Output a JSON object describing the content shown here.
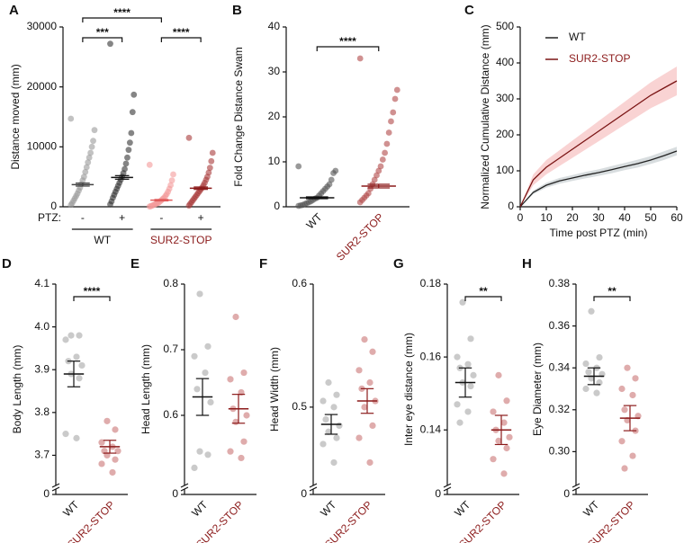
{
  "chart_data": [
    {
      "type": "dotplot",
      "panel": "A",
      "ylabel": "Distance moved (mm)",
      "ylim": [
        0,
        30000
      ],
      "yticks": [
        0,
        10000,
        20000,
        30000
      ],
      "categories": [
        "-",
        "+",
        "-",
        "+"
      ],
      "ptz_label": "PTZ:",
      "group_labels": [
        "WT",
        "SUR2-STOP"
      ],
      "groups": [
        {
          "color": "#9a9a9a",
          "mean_color": "#444444",
          "mean": 3700,
          "sem": 250,
          "values": [
            14700,
            12800,
            11000,
            10000,
            9000,
            8200,
            7400,
            6600,
            5800,
            5000,
            4400,
            3800,
            3200,
            2700,
            2200,
            1800,
            1400,
            1000,
            600,
            300
          ]
        },
        {
          "color": "#333333",
          "mean_color": "#111111",
          "mean": 4900,
          "sem": 300,
          "values": [
            27200,
            18700,
            15800,
            12300,
            10700,
            9500,
            8200,
            7200,
            6300,
            5600,
            5000,
            4500,
            4000,
            3500,
            3000,
            2500,
            2000,
            1500,
            900,
            400
          ]
        },
        {
          "color": "#f39a9a",
          "mean_color": "#e05a5a",
          "mean": 1100,
          "sem": 120,
          "values": [
            7000,
            5400,
            4400,
            3600,
            3000,
            2500,
            2100,
            1800,
            1500,
            1300,
            1100,
            900,
            700,
            600,
            500,
            400,
            300,
            200,
            100,
            50
          ]
        },
        {
          "color": "#a83a3a",
          "mean_color": "#8b1a1a",
          "mean": 3100,
          "sem": 200,
          "values": [
            11500,
            9000,
            7600,
            6500,
            5700,
            5000,
            4500,
            4000,
            3600,
            3200,
            2900,
            2600,
            2300,
            2000,
            1700,
            1400,
            1100,
            800,
            500,
            200
          ]
        }
      ],
      "significance": [
        {
          "pair": [
            0,
            2
          ],
          "label": "****"
        },
        {
          "pair": [
            0,
            1
          ],
          "label": "***"
        },
        {
          "pair": [
            2,
            3
          ],
          "label": "****"
        }
      ]
    },
    {
      "type": "dotplot",
      "panel": "B",
      "ylabel": "Fold Change Distance Swam",
      "ylim": [
        0,
        40
      ],
      "yticks": [
        0,
        10,
        20,
        30,
        40
      ],
      "categories": [
        "WT",
        "SUR2-STOP"
      ],
      "groups": [
        {
          "color": "#555555",
          "mean_color": "#111111",
          "mean": 2.0,
          "sem": 0.2,
          "values": [
            9,
            8,
            7.5,
            6,
            5,
            4.5,
            4,
            3.5,
            3,
            2.5,
            2,
            1.8,
            1.5,
            1.2,
            1,
            0.8,
            0.6,
            0.4,
            0.3,
            0.2
          ]
        },
        {
          "color": "#b04848",
          "mean_color": "#8b1a1a",
          "mean": 4.6,
          "sem": 0.4,
          "values": [
            33,
            26,
            24,
            21,
            19,
            16.5,
            14,
            12,
            10.5,
            9,
            8,
            7,
            6,
            5,
            4,
            3,
            2.5,
            2,
            1.5,
            1
          ]
        }
      ],
      "significance": [
        {
          "pair": [
            0,
            1
          ],
          "label": "****"
        }
      ]
    },
    {
      "type": "line",
      "panel": "C",
      "ylabel": "Normalized Cumulative Distance (mm)",
      "xlabel": "Time post PTZ (min)",
      "xlim": [
        0,
        60
      ],
      "xticks": [
        0,
        10,
        20,
        30,
        40,
        50,
        60
      ],
      "ylim": [
        0,
        500
      ],
      "yticks": [
        0,
        100,
        200,
        300,
        400,
        500
      ],
      "x": [
        0,
        5,
        10,
        15,
        20,
        25,
        30,
        35,
        40,
        45,
        50,
        55,
        60
      ],
      "series": [
        {
          "name": "WT",
          "color": "#222222",
          "band_color": "#c8cfd2",
          "values": [
            0,
            40,
            60,
            72,
            80,
            88,
            95,
            103,
            112,
            120,
            130,
            142,
            155
          ],
          "error": [
            0,
            5,
            7,
            8,
            8,
            9,
            9,
            10,
            10,
            11,
            11,
            12,
            12
          ]
        },
        {
          "name": "SUR2-STOP",
          "color": "#7a1414",
          "band_color": "#f6c0c0",
          "values": [
            0,
            75,
            110,
            135,
            160,
            185,
            210,
            235,
            260,
            285,
            310,
            330,
            350
          ],
          "error": [
            0,
            15,
            20,
            22,
            24,
            26,
            28,
            30,
            32,
            34,
            36,
            38,
            40
          ]
        }
      ]
    },
    {
      "type": "dotplot",
      "panel": "D",
      "ylabel": "Body Length (mm)",
      "axis_break": true,
      "ylim": [
        3.64,
        4.1
      ],
      "yticks": [
        0,
        3.7,
        3.8,
        3.9,
        {
          "value": 4.0,
          "label": "4.0"
        },
        4.1
      ],
      "categories": [
        "WT",
        "SUR2-STOP"
      ],
      "groups": [
        {
          "color": "#c4c4c4",
          "mean_color": "#111111",
          "mean": 3.89,
          "sem": 0.03,
          "values": [
            3.98,
            3.98,
            3.97,
            3.93,
            3.92,
            3.91,
            3.89,
            3.88,
            3.75,
            3.74
          ]
        },
        {
          "color": "#dba3a3",
          "mean_color": "#8b1a1a",
          "mean": 3.72,
          "sem": 0.015,
          "values": [
            3.78,
            3.76,
            3.73,
            3.72,
            3.71,
            3.71,
            3.7,
            3.69,
            3.68,
            3.66
          ]
        }
      ],
      "significance": [
        {
          "pair": [
            0,
            1
          ],
          "label": "****"
        }
      ]
    },
    {
      "type": "dotplot",
      "panel": "E",
      "ylabel": "Head Length (mm)",
      "axis_break": true,
      "ylim": [
        0.5,
        0.8
      ],
      "yticks": [
        0,
        0.6,
        0.7,
        0.8
      ],
      "categories": [
        "WT",
        "SUR2-STOP"
      ],
      "groups": [
        {
          "color": "#c4c4c4",
          "mean_color": "#111111",
          "mean": 0.628,
          "sem": 0.028,
          "values": [
            0.785,
            0.705,
            0.69,
            0.665,
            0.64,
            0.62,
            0.545,
            0.54,
            0.52
          ]
        },
        {
          "color": "#dba3a3",
          "mean_color": "#8b1a1a",
          "mean": 0.61,
          "sem": 0.022,
          "values": [
            0.75,
            0.665,
            0.655,
            0.635,
            0.61,
            0.6,
            0.59,
            0.56,
            0.545,
            0.535
          ]
        }
      ]
    },
    {
      "type": "dotplot",
      "panel": "F",
      "ylabel": "Head Width (mm)",
      "axis_break": true,
      "ylim": [
        0.44,
        0.6
      ],
      "yticks": [
        0,
        0.5,
        0.6
      ],
      "categories": [
        "WT",
        "SUR2-STOP"
      ],
      "groups": [
        {
          "color": "#c4c4c4",
          "mean_color": "#111111",
          "mean": 0.486,
          "sem": 0.008,
          "values": [
            0.52,
            0.51,
            0.505,
            0.5,
            0.49,
            0.485,
            0.48,
            0.475,
            0.47,
            0.455
          ]
        },
        {
          "color": "#dba3a3",
          "mean_color": "#8b1a1a",
          "mean": 0.505,
          "sem": 0.01,
          "values": [
            0.555,
            0.545,
            0.53,
            0.52,
            0.515,
            0.505,
            0.5,
            0.485,
            0.475,
            0.455
          ]
        }
      ]
    },
    {
      "type": "dotplot",
      "panel": "G",
      "ylabel": "Inter eye distance  (mm)",
      "axis_break": true,
      "ylim": [
        0.126,
        0.18
      ],
      "yticks": [
        0,
        0.14,
        0.16,
        0.18
      ],
      "categories": [
        "WT",
        "SUR2-STOP"
      ],
      "groups": [
        {
          "color": "#c4c4c4",
          "mean_color": "#111111",
          "mean": 0.153,
          "sem": 0.004,
          "values": [
            0.175,
            0.165,
            0.16,
            0.158,
            0.157,
            0.155,
            0.153,
            0.152,
            0.147,
            0.145,
            0.142
          ]
        },
        {
          "color": "#dba3a3",
          "mean_color": "#8b1a1a",
          "mean": 0.14,
          "sem": 0.004,
          "values": [
            0.155,
            0.148,
            0.145,
            0.142,
            0.14,
            0.138,
            0.137,
            0.135,
            0.132,
            0.128
          ]
        }
      ],
      "significance": [
        {
          "pair": [
            0,
            1
          ],
          "label": "**"
        }
      ]
    },
    {
      "type": "dotplot",
      "panel": "H",
      "ylabel": "Eye Diameter (mm)",
      "axis_break": true,
      "ylim": [
        0.286,
        0.38
      ],
      "yticks": [
        0,
        {
          "value": 0.3,
          "label": "0.30"
        },
        0.32,
        0.34,
        0.36,
        0.38
      ],
      "categories": [
        "WT",
        "SUR2-STOP"
      ],
      "groups": [
        {
          "color": "#c4c4c4",
          "mean_color": "#111111",
          "mean": 0.336,
          "sem": 0.004,
          "values": [
            0.367,
            0.345,
            0.342,
            0.34,
            0.338,
            0.337,
            0.335,
            0.333,
            0.33,
            0.328
          ]
        },
        {
          "color": "#dba3a3",
          "mean_color": "#8b1a1a",
          "mean": 0.316,
          "sem": 0.006,
          "values": [
            0.34,
            0.335,
            0.33,
            0.327,
            0.32,
            0.317,
            0.315,
            0.31,
            0.305,
            0.298,
            0.292
          ]
        }
      ],
      "significance": [
        {
          "pair": [
            0,
            1
          ],
          "label": "**"
        }
      ]
    }
  ]
}
